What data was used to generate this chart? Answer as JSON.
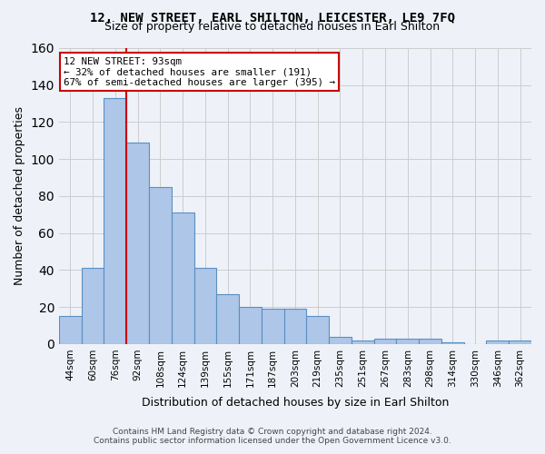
{
  "title": "12, NEW STREET, EARL SHILTON, LEICESTER, LE9 7FQ",
  "subtitle": "Size of property relative to detached houses in Earl Shilton",
  "xlabel": "Distribution of detached houses by size in Earl Shilton",
  "ylabel": "Number of detached properties",
  "categories": [
    "44sqm",
    "60sqm",
    "76sqm",
    "92sqm",
    "108sqm",
    "124sqm",
    "139sqm",
    "155sqm",
    "171sqm",
    "187sqm",
    "203sqm",
    "219sqm",
    "235sqm",
    "251sqm",
    "267sqm",
    "283sqm",
    "298sqm",
    "314sqm",
    "330sqm",
    "346sqm",
    "362sqm"
  ],
  "values": [
    15,
    41,
    133,
    109,
    85,
    71,
    41,
    27,
    20,
    19,
    19,
    15,
    4,
    2,
    3,
    3,
    3,
    1,
    0,
    2,
    2
  ],
  "bar_color": "#aec6e8",
  "bar_edge_color": "#5a8fc2",
  "property_line_bin": 2.5,
  "annotation_text": "12 NEW STREET: 93sqm\n← 32% of detached houses are smaller (191)\n67% of semi-detached houses are larger (395) →",
  "annotation_box_color": "#ffffff",
  "annotation_box_edge": "#cc0000",
  "red_line_color": "#cc0000",
  "grid_color": "#cccccc",
  "background_color": "#eef2f8",
  "ylim": [
    0,
    160
  ],
  "yticks": [
    0,
    20,
    40,
    60,
    80,
    100,
    120,
    140,
    160
  ],
  "footer_line1": "Contains HM Land Registry data © Crown copyright and database right 2024.",
  "footer_line2": "Contains public sector information licensed under the Open Government Licence v3.0."
}
